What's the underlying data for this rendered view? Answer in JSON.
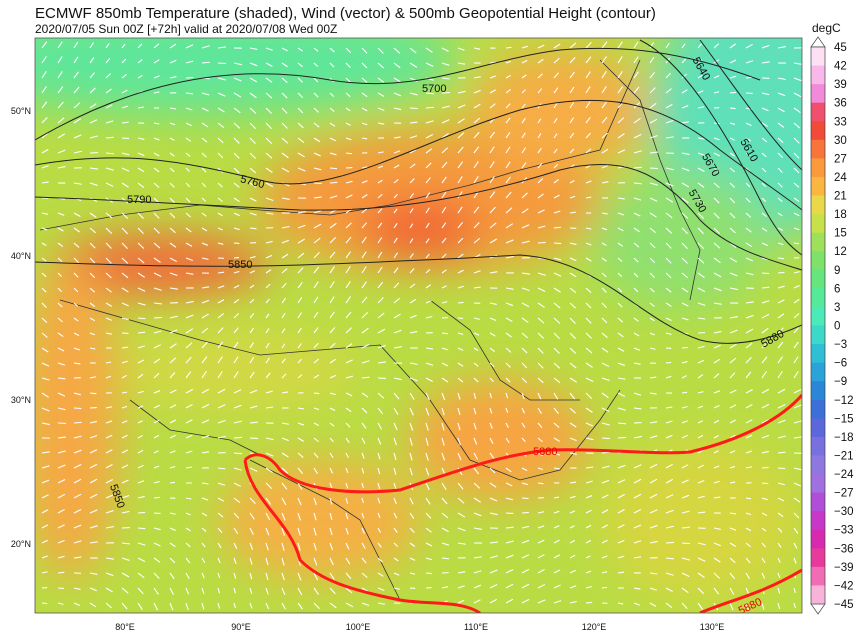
{
  "header": {
    "title": "ECMWF 850mb Temperature (shaded), Wind (vector) & 500mb Geopotential Height (contour)",
    "subtitle": "2020/07/05 Sun 00Z [+72h] valid at 2020/07/08 Wed 00Z"
  },
  "axes": {
    "lat_labels": [
      "50°N",
      "40°N",
      "30°N",
      "20°N"
    ],
    "lon_labels": [
      "80°E",
      "90°E",
      "100°E",
      "110°E",
      "120°E",
      "130°E"
    ]
  },
  "contour_labels": [
    "5700",
    "5640",
    "5610",
    "5670",
    "5730",
    "5760",
    "5790",
    "5850",
    "5880",
    "5880",
    "5880",
    "5850"
  ],
  "colorbar": {
    "unit": "degC",
    "labels": [
      "45",
      "42",
      "39",
      "36",
      "33",
      "30",
      "27",
      "24",
      "21",
      "18",
      "15",
      "12",
      "9",
      "6",
      "3",
      "0",
      "−3",
      "−6",
      "−9",
      "−12",
      "−15",
      "−18",
      "−21",
      "−24",
      "−27",
      "−30",
      "−33",
      "−36",
      "−39",
      "−42",
      "−45"
    ]
  }
}
